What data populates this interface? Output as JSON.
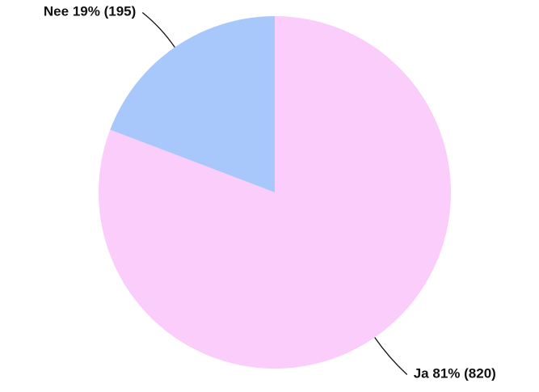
{
  "chart_data": {
    "type": "pie",
    "categories": [
      "Ja",
      "Nee"
    ],
    "values": [
      820,
      195
    ],
    "value_labels": [
      "81% (820)",
      "19% (195)"
    ],
    "colors": [
      "#facdfa",
      "#a8c8fc"
    ]
  }
}
